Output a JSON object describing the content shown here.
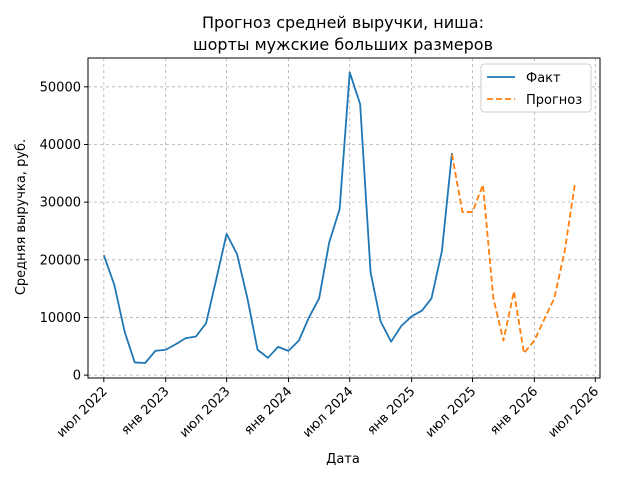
{
  "chart_data": {
    "type": "line",
    "title_line1": "Прогноз средней выручки, ниша:",
    "title_line2": "шорты мужские больших размеров",
    "xlabel": "Дата",
    "ylabel": "Средняя выручка, руб.",
    "x_range": [
      "2022-05-15",
      "2026-07-15"
    ],
    "ylim": [
      -500,
      55000
    ],
    "grid": true,
    "legend_position": "top-right",
    "x_ticks": [
      {
        "date": "2022-07-01",
        "label": "июл 2022"
      },
      {
        "date": "2023-01-01",
        "label": "янв 2023"
      },
      {
        "date": "2023-07-01",
        "label": "июл 2023"
      },
      {
        "date": "2024-01-01",
        "label": "янв 2024"
      },
      {
        "date": "2024-07-01",
        "label": "июл 2024"
      },
      {
        "date": "2025-01-01",
        "label": "янв 2025"
      },
      {
        "date": "2025-07-01",
        "label": "июл 2025"
      },
      {
        "date": "2026-01-01",
        "label": "янв 2026"
      },
      {
        "date": "2026-07-01",
        "label": "июл 2026"
      }
    ],
    "y_ticks": [
      {
        "value": 0,
        "label": "0"
      },
      {
        "value": 10000,
        "label": "10000"
      },
      {
        "value": 20000,
        "label": "20000"
      },
      {
        "value": 30000,
        "label": "30000"
      },
      {
        "value": 40000,
        "label": "40000"
      },
      {
        "value": 50000,
        "label": "50000"
      }
    ],
    "series": [
      {
        "name": "Факт",
        "color": "#1f77b4",
        "dash": "solid",
        "points": [
          [
            "2022-07-01",
            20800
          ],
          [
            "2022-08-01",
            15700
          ],
          [
            "2022-09-01",
            7500
          ],
          [
            "2022-10-01",
            2200
          ],
          [
            "2022-11-01",
            2100
          ],
          [
            "2022-12-01",
            4200
          ],
          [
            "2023-01-01",
            4400
          ],
          [
            "2023-02-01",
            5400
          ],
          [
            "2023-03-01",
            6400
          ],
          [
            "2023-04-01",
            6700
          ],
          [
            "2023-05-01",
            9000
          ],
          [
            "2023-06-01",
            16800
          ],
          [
            "2023-07-01",
            24500
          ],
          [
            "2023-08-01",
            21000
          ],
          [
            "2023-09-01",
            13300
          ],
          [
            "2023-10-01",
            4400
          ],
          [
            "2023-11-01",
            3000
          ],
          [
            "2023-12-01",
            4900
          ],
          [
            "2024-01-01",
            4200
          ],
          [
            "2024-02-01",
            6000
          ],
          [
            "2024-03-01",
            9900
          ],
          [
            "2024-04-01",
            13300
          ],
          [
            "2024-05-01",
            23000
          ],
          [
            "2024-06-01",
            28800
          ],
          [
            "2024-07-01",
            52500
          ],
          [
            "2024-08-01",
            47000
          ],
          [
            "2024-09-01",
            17800
          ],
          [
            "2024-10-01",
            9300
          ],
          [
            "2024-11-01",
            5800
          ],
          [
            "2024-12-01",
            8500
          ],
          [
            "2025-01-01",
            10200
          ],
          [
            "2025-02-01",
            11200
          ],
          [
            "2025-03-01",
            13300
          ],
          [
            "2025-04-01",
            21500
          ],
          [
            "2025-05-01",
            38500
          ]
        ]
      },
      {
        "name": "Прогноз",
        "color": "#ff7f0e",
        "dash": "dashed",
        "points": [
          [
            "2025-05-01",
            38300
          ],
          [
            "2025-06-01",
            28300
          ],
          [
            "2025-07-01",
            28300
          ],
          [
            "2025-08-01",
            33000
          ],
          [
            "2025-09-01",
            13300
          ],
          [
            "2025-10-01",
            6000
          ],
          [
            "2025-11-01",
            14500
          ],
          [
            "2025-12-01",
            3800
          ],
          [
            "2026-01-01",
            6000
          ],
          [
            "2026-02-01",
            9900
          ],
          [
            "2026-03-01",
            13300
          ],
          [
            "2026-04-01",
            21500
          ],
          [
            "2026-05-01",
            33000
          ]
        ]
      }
    ]
  }
}
